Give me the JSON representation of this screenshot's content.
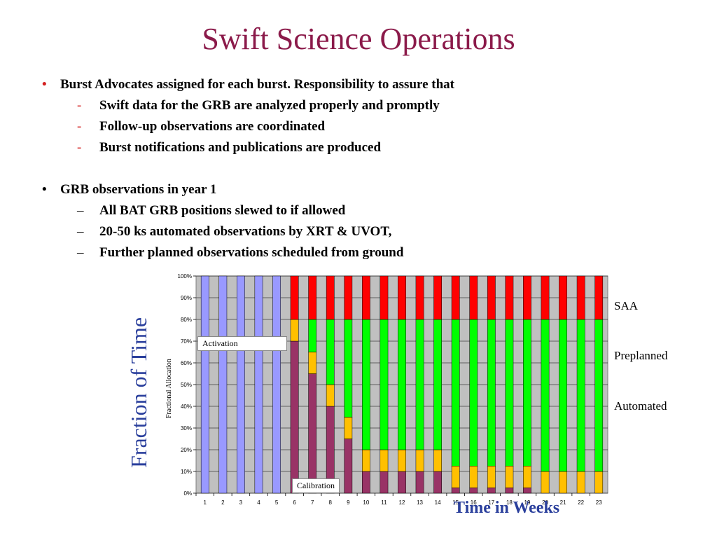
{
  "slide": {
    "title": "Swift Science Operations",
    "bullets": [
      {
        "text": "Burst Advocates assigned for each burst.  Responsibility to assure that",
        "marker": "•",
        "subs": [
          {
            "marker": "-",
            "text": "Swift data for the GRB are analyzed properly and promptly"
          },
          {
            "marker": "-",
            "text": "Follow-up observations are coordinated"
          },
          {
            "marker": "-",
            "text": "Burst notifications and publications are produced"
          }
        ]
      },
      {
        "text": "GRB observations in year 1",
        "marker": "•",
        "subs": [
          {
            "marker": "–",
            "text": "All BAT GRB positions slewed to if allowed"
          },
          {
            "marker": "–",
            "text": "20-50 ks automated observations by XRT & UVOT,"
          },
          {
            "marker": "–",
            "text": "Further planned observations scheduled from ground"
          }
        ]
      }
    ]
  },
  "chart_data": {
    "type": "bar",
    "stacked": true,
    "ylabel": "Fraction of Time",
    "ylabel_small": "Fractional Allocation",
    "xlabel": "Time in Weeks",
    "ylim": [
      0,
      100
    ],
    "yticks": [
      "0%",
      "10%",
      "20%",
      "30%",
      "40%",
      "50%",
      "60%",
      "70%",
      "80%",
      "90%",
      "100%"
    ],
    "categories": [
      "1",
      "2",
      "3",
      "4",
      "5",
      "6",
      "7",
      "8",
      "9",
      "10",
      "11",
      "12",
      "13",
      "14",
      "15",
      "16",
      "17",
      "18",
      "19",
      "20",
      "21",
      "22",
      "23"
    ],
    "background": "#c0c0c0",
    "series": [
      {
        "name": "",
        "color": "#9999ff",
        "values": [
          100,
          100,
          100,
          100,
          100,
          0,
          0,
          0,
          0,
          0,
          0,
          0,
          0,
          0,
          0,
          0,
          0,
          0,
          0,
          0,
          0,
          0,
          0
        ]
      },
      {
        "name": "",
        "color": "#993366",
        "values": [
          0,
          0,
          0,
          0,
          0,
          70,
          55,
          40,
          25,
          10,
          10,
          10,
          10,
          10,
          2.5,
          2.5,
          2.5,
          2.5,
          2.5,
          0,
          0,
          0,
          0
        ]
      },
      {
        "name": "",
        "color": "#ffc000",
        "values": [
          0,
          0,
          0,
          0,
          0,
          10,
          10,
          10,
          10,
          10,
          10,
          10,
          10,
          10,
          10,
          10,
          10,
          10,
          10,
          10,
          10,
          10,
          10
        ]
      },
      {
        "name": "",
        "color": "#00ff00",
        "values": [
          0,
          0,
          0,
          0,
          0,
          0,
          15,
          30,
          45,
          60,
          60,
          60,
          60,
          60,
          67.5,
          67.5,
          67.5,
          67.5,
          67.5,
          70,
          70,
          70,
          70
        ]
      },
      {
        "name": "",
        "color": "#ff0000",
        "values": [
          0,
          0,
          0,
          0,
          0,
          20,
          20,
          20,
          20,
          20,
          20,
          20,
          20,
          20,
          20,
          20,
          20,
          20,
          20,
          20,
          20,
          20,
          20
        ]
      }
    ],
    "legend": [
      "SAA",
      "Preplanned",
      "Automated"
    ],
    "annotations": [
      "Activation",
      "Calibration"
    ]
  }
}
